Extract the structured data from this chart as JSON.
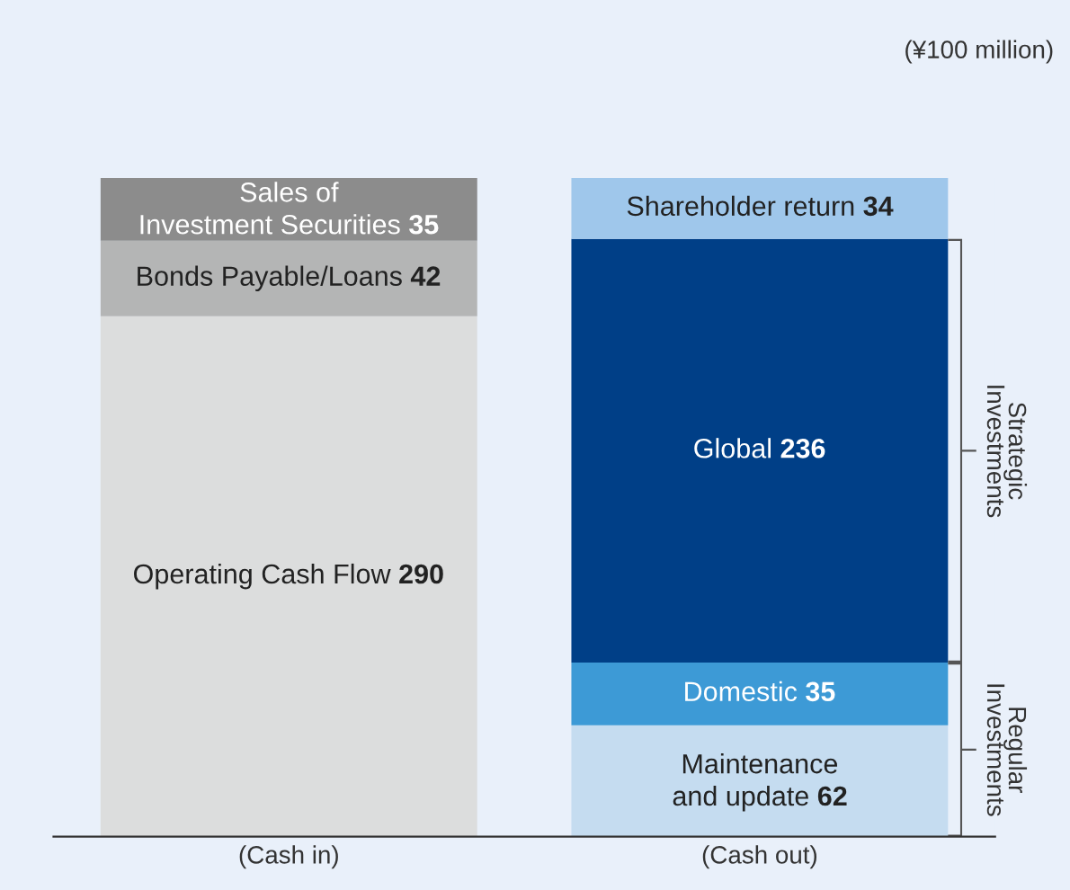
{
  "chart_data": {
    "type": "bar",
    "stacked": true,
    "data_labels": true,
    "categories": [
      "(Cash in)",
      "(Cash out)"
    ],
    "series": [
      {
        "name": "Operating Cash Flow",
        "color": "#dcdddd",
        "values": [
          290,
          null
        ]
      },
      {
        "name": "Bonds Payable/Loans",
        "color": "#b4b5b5",
        "values": [
          42,
          null
        ]
      },
      {
        "name": "Sales of\nInvestment Securities",
        "color": "#8c8c8c",
        "values": [
          35,
          null
        ]
      },
      {
        "name": "Maintenance\nand update",
        "color": "#c5dcf0",
        "values": [
          null,
          62
        ]
      },
      {
        "name": "Domestic",
        "color": "#3d9ad6",
        "values": [
          null,
          35
        ]
      },
      {
        "name": "Global",
        "color": "#003f87",
        "values": [
          null,
          236
        ]
      },
      {
        "name": "Shareholder return",
        "color": "#9fc7eb",
        "values": [
          null,
          34
        ]
      }
    ],
    "annotations": [
      "(¥100 million)",
      "Strategic\nInvestments",
      "Regular\nInvestments"
    ]
  }
}
